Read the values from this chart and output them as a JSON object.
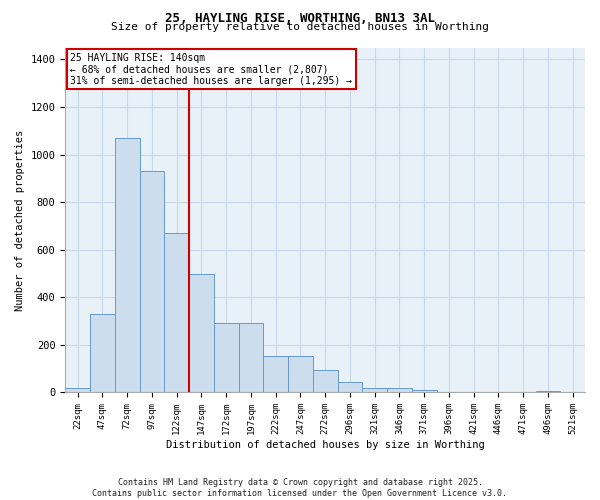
{
  "title": "25, HAYLING RISE, WORTHING, BN13 3AL",
  "subtitle": "Size of property relative to detached houses in Worthing",
  "xlabel": "Distribution of detached houses by size in Worthing",
  "ylabel": "Number of detached properties",
  "bin_labels": [
    "22sqm",
    "47sqm",
    "72sqm",
    "97sqm",
    "122sqm",
    "147sqm",
    "172sqm",
    "197sqm",
    "222sqm",
    "247sqm",
    "272sqm",
    "296sqm",
    "321sqm",
    "346sqm",
    "371sqm",
    "396sqm",
    "421sqm",
    "446sqm",
    "471sqm",
    "496sqm",
    "521sqm"
  ],
  "bar_values": [
    18,
    330,
    1070,
    930,
    670,
    500,
    290,
    290,
    155,
    155,
    95,
    45,
    20,
    20,
    12,
    0,
    0,
    0,
    0,
    8,
    0
  ],
  "bar_color": "#ccdded",
  "bar_edge_color": "#6699cc",
  "vline_color": "#cc0000",
  "vline_x_index": 4.5,
  "annotation_text": "25 HAYLING RISE: 140sqm\n← 68% of detached houses are smaller (2,807)\n31% of semi-detached houses are larger (1,295) →",
  "annotation_box_color": "#cc0000",
  "ylim": [
    0,
    1450
  ],
  "yticks": [
    0,
    200,
    400,
    600,
    800,
    1000,
    1200,
    1400
  ],
  "grid_color": "#c8d8e8",
  "bg_color": "#e8f0f8",
  "footer_line1": "Contains HM Land Registry data © Crown copyright and database right 2025.",
  "footer_line2": "Contains public sector information licensed under the Open Government Licence v3.0."
}
